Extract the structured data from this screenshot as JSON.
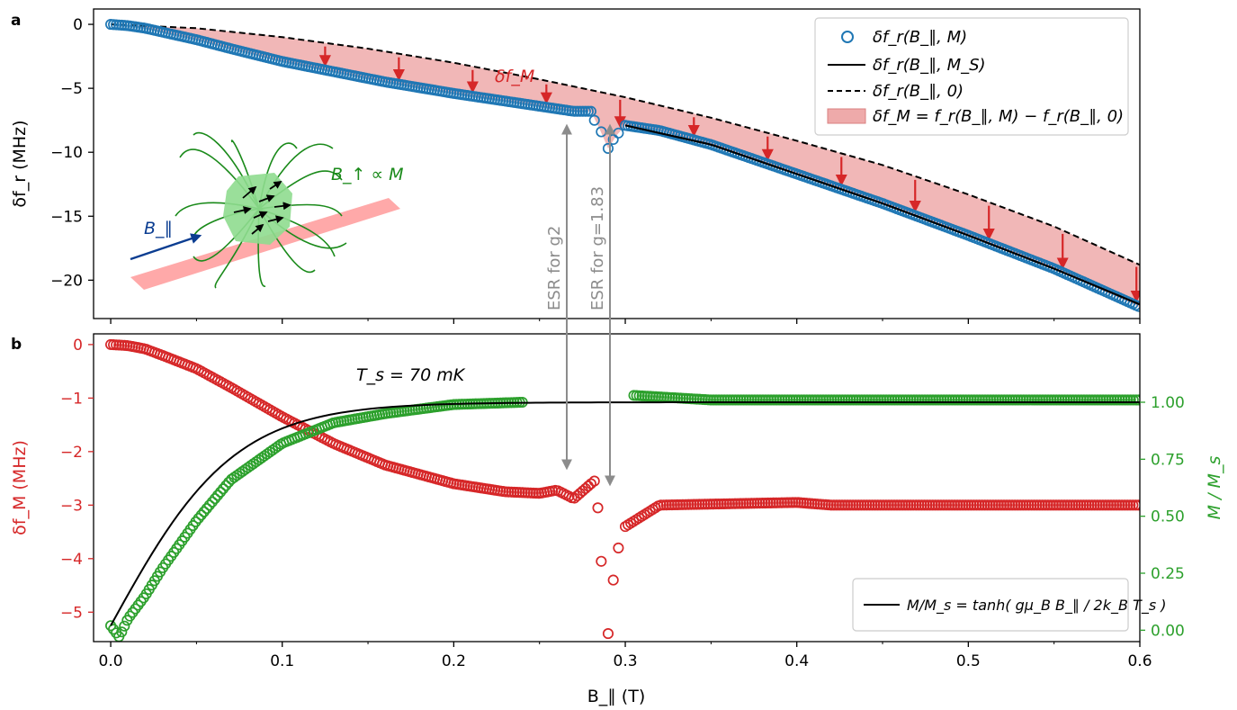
{
  "colors": {
    "blue": "#1f77b4",
    "red": "#d62728",
    "green": "#2ca02c",
    "black": "#000000",
    "gray": "#8c8c8c",
    "fill_red": "#eeaaaa",
    "navy": "#0b3d91"
  },
  "panel_a": {
    "letter": "a",
    "ylabel": "δf_r (MHz)",
    "y_ticks": [
      "0",
      "−5",
      "−10",
      "−15",
      "−20"
    ],
    "annot_dfM": "δf_M",
    "inset_B_label": "B_∥",
    "inset_field_label": "B_↑ ∝ M",
    "legend": [
      "δf_r(B_∥, M)",
      "δf_r(B_∥, M_S)",
      "δf_r(B_∥, 0)",
      "δf_M = f_r(B_∥, M) − f_r(B_∥, 0)"
    ]
  },
  "panel_b": {
    "letter": "b",
    "ylabel_left": "δf_M (MHz)",
    "ylabel_right": "M / M_s",
    "y_ticks_left": [
      "0",
      "−1",
      "−2",
      "−3",
      "−4",
      "−5"
    ],
    "y_ticks_right": [
      "1.00",
      "0.75",
      "0.50",
      "0.25",
      "0.00"
    ],
    "temperature_label": "T_s = 70 mK",
    "legend": "M/M_s = tanh( gμ_B B_∥ / 2k_B T_s )"
  },
  "esr_labels": [
    "ESR for g2",
    "ESR for g=1.83"
  ],
  "x_axis": {
    "label": "B_∥ (T)",
    "ticks": [
      "0.0",
      "0.1",
      "0.2",
      "0.3",
      "0.4",
      "0.5",
      "0.6"
    ]
  },
  "chart_data": [
    {
      "type": "line",
      "panel": "a",
      "xlabel": "B_∥ (T)",
      "ylabel": "δf_r (MHz)",
      "xlim": [
        -0.01,
        0.6
      ],
      "ylim": [
        -23,
        1.2
      ],
      "grid": false,
      "legend_position": "top-right",
      "series": [
        {
          "name": "δf_r(B_∥, M)",
          "marker": "open-circle",
          "color": "#1f77b4",
          "x": [
            0.0,
            0.01,
            0.02,
            0.03,
            0.05,
            0.07,
            0.1,
            0.13,
            0.16,
            0.2,
            0.23,
            0.25,
            0.27,
            0.28,
            0.282,
            0.286,
            0.29,
            0.293,
            0.296,
            0.3,
            0.32,
            0.35,
            0.4,
            0.45,
            0.5,
            0.55,
            0.6
          ],
          "y": [
            0.0,
            -0.1,
            -0.3,
            -0.6,
            -1.2,
            -1.9,
            -2.9,
            -3.7,
            -4.5,
            -5.4,
            -6.0,
            -6.4,
            -6.8,
            -6.8,
            -7.5,
            -8.4,
            -9.7,
            -9.0,
            -8.5,
            -7.9,
            -8.3,
            -9.4,
            -11.7,
            -14.0,
            -16.5,
            -19.1,
            -22.1
          ]
        },
        {
          "name": "δf_r(B_∥, M_S)",
          "style": "solid",
          "color": "#000000",
          "x": [
            0.3,
            0.35,
            0.4,
            0.45,
            0.5,
            0.55,
            0.6
          ],
          "y": [
            -7.9,
            -9.4,
            -11.7,
            -14.0,
            -16.5,
            -19.1,
            -21.9
          ]
        },
        {
          "name": "δf_r(B_∥, 0)",
          "style": "dashed",
          "color": "#000000",
          "x": [
            0.0,
            0.05,
            0.1,
            0.15,
            0.2,
            0.25,
            0.3,
            0.35,
            0.4,
            0.45,
            0.5,
            0.55,
            0.6
          ],
          "y": [
            0.0,
            -0.3,
            -1.0,
            -1.9,
            -3.0,
            -4.3,
            -5.7,
            -7.3,
            -9.1,
            -11.0,
            -13.3,
            -15.8,
            -18.8
          ]
        }
      ],
      "arrows_x": [
        0.125,
        0.168,
        0.211,
        0.254,
        0.297,
        0.34,
        0.383,
        0.426,
        0.469,
        0.512,
        0.555,
        0.598
      ]
    },
    {
      "type": "scatter",
      "panel": "b",
      "xlabel": "B_∥ (T)",
      "ylabel": "δf_M (MHz)",
      "y2label": "M / M_s",
      "xlim": [
        -0.01,
        0.6
      ],
      "ylim": [
        -5.55,
        0.2
      ],
      "y2lim": [
        -0.05,
        1.3
      ],
      "legend_position": "bottom-right",
      "series": [
        {
          "name": "δf_M",
          "axis": "left",
          "marker": "open-circle",
          "color": "#d62728",
          "x": [
            0.0,
            0.01,
            0.02,
            0.03,
            0.05,
            0.07,
            0.1,
            0.13,
            0.16,
            0.2,
            0.23,
            0.25,
            0.26,
            0.27,
            0.28,
            0.282,
            0.284,
            0.286,
            0.29,
            0.293,
            0.296,
            0.3,
            0.32,
            0.4,
            0.42,
            0.5,
            0.6
          ],
          "y": [
            0.0,
            -0.02,
            -0.08,
            -0.2,
            -0.45,
            -0.8,
            -1.35,
            -1.85,
            -2.25,
            -2.6,
            -2.75,
            -2.78,
            -2.72,
            -2.88,
            -2.6,
            -2.55,
            -3.05,
            -4.05,
            -5.4,
            -4.4,
            -3.8,
            -3.4,
            -3.0,
            -2.95,
            -3.0,
            -3.0,
            -3.0
          ]
        },
        {
          "name": "M / M_s",
          "axis": "right",
          "marker": "open-circle",
          "color": "#2ca02c",
          "x": [
            0.0,
            0.005,
            0.01,
            0.02,
            0.03,
            0.05,
            0.07,
            0.1,
            0.13,
            0.16,
            0.2,
            0.24,
            0.305,
            0.35,
            0.4,
            0.45,
            0.5,
            0.55,
            0.6
          ],
          "y": [
            0.02,
            -0.03,
            0.05,
            0.15,
            0.27,
            0.48,
            0.66,
            0.82,
            0.91,
            0.95,
            0.99,
            1.0,
            1.03,
            1.01,
            1.01,
            1.01,
            1.01,
            1.01,
            1.01
          ]
        },
        {
          "name": "M/M_s = tanh(gμ_B B_∥ / 2k_B T_s)",
          "axis": "right",
          "style": "solid",
          "color": "#000000"
        }
      ]
    }
  ]
}
